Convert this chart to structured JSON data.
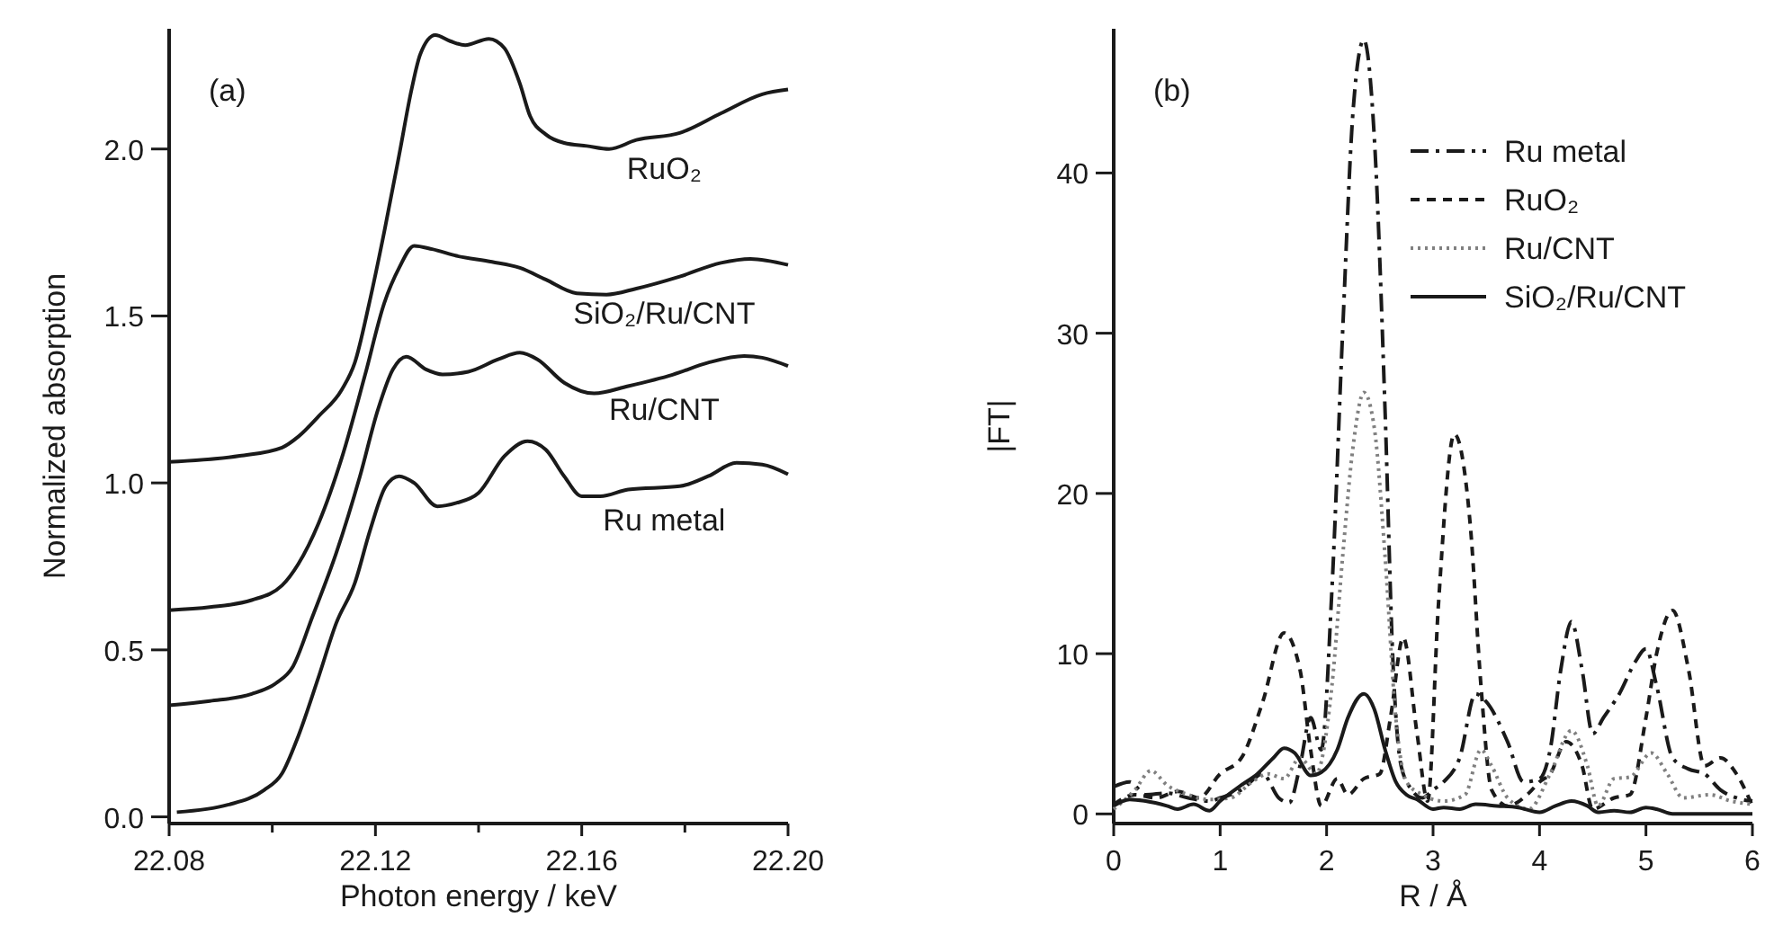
{
  "chart_data": [
    {
      "type": "line",
      "xlabel": "Photon energy / keV",
      "ylabel": "Normalized absorption",
      "annotations": [
        "(a)"
      ],
      "xlim": [
        22.08,
        22.2
      ],
      "ylim": [
        -0.02,
        2.36
      ],
      "xticks": [
        22.08,
        {
          "value": 22.1,
          "label": null
        },
        22.12,
        {
          "value": 22.14,
          "label": null
        },
        22.16,
        {
          "value": 22.18,
          "label": null
        },
        {
          "value": 22.2,
          "label": "22.20"
        }
      ],
      "yticks": [
        {
          "value": 0,
          "label": "0.0"
        },
        {
          "value": 0.5,
          "label": "0.5"
        },
        {
          "value": 1,
          "label": "1.0"
        },
        {
          "value": 1.5,
          "label": "1.5"
        },
        {
          "value": 2,
          "label": "2.0"
        }
      ],
      "grid": false,
      "legend": false,
      "line_style": "solid",
      "series": [
        {
          "name": "RuO₂",
          "color": "#1a1a1a",
          "x": [
            22.08,
            22.0937,
            22.1019,
            22.105,
            22.109,
            22.1135,
            22.116,
            22.1188,
            22.1217,
            22.1246,
            22.127,
            22.1287,
            22.1316,
            22.1345,
            22.1374,
            22.142,
            22.145,
            22.148,
            22.15,
            22.153,
            22.1566,
            22.161,
            22.1653,
            22.1706,
            22.179,
            22.187,
            22.195,
            22.2
          ],
          "values": [
            1.063,
            1.081,
            1.106,
            1.138,
            1.2,
            1.28,
            1.36,
            1.538,
            1.751,
            1.982,
            2.178,
            2.284,
            2.341,
            2.323,
            2.311,
            2.33,
            2.302,
            2.196,
            2.098,
            2.044,
            2.018,
            2.009,
            2.0,
            2.027,
            2.048,
            2.107,
            2.164,
            2.178
          ]
        },
        {
          "name": "SiO₂/Ru/CNT",
          "color": "#1a1a1a",
          "x": [
            22.08,
            22.0879,
            22.096,
            22.1019,
            22.105,
            22.109,
            22.1135,
            22.118,
            22.1217,
            22.1246,
            22.1275,
            22.131,
            22.1357,
            22.1426,
            22.148,
            22.153,
            22.159,
            22.1648,
            22.1706,
            22.179,
            22.187,
            22.1927,
            22.2
          ],
          "values": [
            0.619,
            0.628,
            0.649,
            0.693,
            0.756,
            0.88,
            1.076,
            1.324,
            1.538,
            1.644,
            1.71,
            1.7,
            1.68,
            1.662,
            1.644,
            1.609,
            1.568,
            1.564,
            1.582,
            1.618,
            1.659,
            1.671,
            1.653
          ]
        },
        {
          "name": "Ru/CNT",
          "color": "#1a1a1a",
          "x": [
            22.08,
            22.0879,
            22.096,
            22.1007,
            22.104,
            22.1077,
            22.1124,
            22.117,
            22.1205,
            22.1234,
            22.126,
            22.1298,
            22.133,
            22.138,
            22.1438,
            22.148,
            22.1514,
            22.1566,
            22.1624,
            22.169,
            22.1776,
            22.1845,
            22.1915,
            22.195,
            22.2
          ],
          "values": [
            0.334,
            0.347,
            0.368,
            0.4,
            0.45,
            0.596,
            0.79,
            1.02,
            1.22,
            1.34,
            1.378,
            1.34,
            1.325,
            1.333,
            1.37,
            1.39,
            1.37,
            1.3,
            1.268,
            1.29,
            1.324,
            1.36,
            1.38,
            1.375,
            1.35
          ]
        },
        {
          "name": "Ru metal",
          "color": "#1a1a1a",
          "x": [
            22.0815,
            22.0914,
            22.0984,
            22.1019,
            22.105,
            22.109,
            22.1124,
            22.116,
            22.119,
            22.122,
            22.1246,
            22.1275,
            22.132,
            22.1357,
            22.14,
            22.145,
            22.1495,
            22.153,
            22.1566,
            22.16,
            22.1636,
            22.169,
            22.179,
            22.1845,
            22.19,
            22.195,
            22.2
          ],
          "values": [
            0.014,
            0.036,
            0.08,
            0.13,
            0.24,
            0.42,
            0.58,
            0.7,
            0.86,
            0.99,
            1.02,
            1.0,
            0.93,
            0.94,
            0.97,
            1.08,
            1.125,
            1.1,
            1.02,
            0.96,
            0.96,
            0.98,
            0.99,
            1.02,
            1.06,
            1.055,
            1.026
          ]
        }
      ]
    },
    {
      "type": "line",
      "xlabel": "R / Å",
      "ylabel": "|FT|",
      "annotations": [
        "(b)"
      ],
      "xlim": [
        0,
        6
      ],
      "ylim": [
        -0.6,
        49
      ],
      "xticks": [
        0,
        1,
        2,
        3,
        4,
        5,
        6
      ],
      "yticks": [
        0,
        10,
        20,
        30,
        40
      ],
      "grid": false,
      "legend": "top right",
      "series": [
        {
          "name": "Ru metal",
          "color": "#1a1a1a",
          "line_style": "dashdot",
          "x": [
            0,
            0.15,
            0.3,
            0.5,
            0.7,
            0.9,
            1.0,
            1.2,
            1.4,
            1.55,
            1.65,
            1.75,
            1.85,
            1.95,
            2.05,
            2.15,
            2.25,
            2.35,
            2.45,
            2.55,
            2.62,
            2.7,
            2.8,
            2.9,
            3.0,
            3.1,
            3.25,
            3.4,
            3.5,
            3.7,
            3.85,
            4.0,
            4.1,
            4.2,
            4.3,
            4.4,
            4.5,
            4.6,
            4.75,
            4.9,
            5.0,
            5.1,
            5.25,
            5.4,
            5.55,
            5.7,
            5.85,
            6.0
          ],
          "values": [
            1.7,
            2.0,
            1.2,
            1.3,
            1.0,
            0.8,
            1.0,
            1.5,
            2.5,
            1.0,
            0.7,
            3,
            6,
            4,
            14,
            30,
            44,
            48.3,
            42,
            25,
            10,
            3,
            1.5,
            1.0,
            1.5,
            2.0,
            3.5,
            7.5,
            7.0,
            4.5,
            2,
            2.2,
            4,
            9,
            12,
            9,
            5,
            6,
            7.5,
            9.5,
            10.3,
            8,
            3.5,
            2.8,
            2.5,
            1.5,
            1,
            0.8
          ]
        },
        {
          "name": "RuO₂",
          "color": "#1a1a1a",
          "line_style": "dashed",
          "x": [
            0,
            0.2,
            0.4,
            0.6,
            0.8,
            1.0,
            1.2,
            1.4,
            1.6,
            1.75,
            1.85,
            1.95,
            2.1,
            2.2,
            2.35,
            2.5,
            2.6,
            2.72,
            2.85,
            2.95,
            3.05,
            3.2,
            3.35,
            3.45,
            3.55,
            3.7,
            3.9,
            4.0,
            4.1,
            4.25,
            4.4,
            4.5,
            4.7,
            4.85,
            5.0,
            5.1,
            5.25,
            5.4,
            5.55,
            5.7,
            5.85,
            6.0
          ],
          "values": [
            0.6,
            1.2,
            1.0,
            1.4,
            1.0,
            2.5,
            3.5,
            7,
            11.3,
            9,
            4,
            0.5,
            2.2,
            1.2,
            2.2,
            2.5,
            6,
            11,
            5,
            0.8,
            13,
            23.7,
            18,
            8,
            1.5,
            0.5,
            1.3,
            2.0,
            2.5,
            4.5,
            3,
            0.3,
            1.0,
            1.2,
            6,
            10,
            12.7,
            9,
            3,
            3.5,
            2.5,
            0.5
          ]
        },
        {
          "name": "Ru/CNT",
          "color": "#808080",
          "line_style": "dotted",
          "x": [
            0,
            0.2,
            0.35,
            0.5,
            0.7,
            0.9,
            1.1,
            1.3,
            1.45,
            1.6,
            1.75,
            1.9,
            2.05,
            2.15,
            2.25,
            2.35,
            2.45,
            2.55,
            2.65,
            2.75,
            2.9,
            3.1,
            3.3,
            3.45,
            3.55,
            3.7,
            3.9,
            4.1,
            4.3,
            4.45,
            4.55,
            4.7,
            4.85,
            5.05,
            5.2,
            5.35,
            5.6,
            5.8,
            6.0
          ],
          "values": [
            0.3,
            1.5,
            2.7,
            1.8,
            1.2,
            0.9,
            1.0,
            2.0,
            2.5,
            2.2,
            3.5,
            2.5,
            8,
            16,
            23,
            26.3,
            24,
            16,
            6,
            2,
            1.2,
            0.8,
            1.2,
            4,
            3,
            1.0,
            0.3,
            2.5,
            5.2,
            3,
            0.5,
            2.2,
            2.3,
            3.8,
            2.5,
            1.0,
            1.2,
            0.8,
            0.6
          ]
        },
        {
          "name": "SiO₂/Ru/CNT",
          "color": "#1a1a1a",
          "line_style": "solid",
          "x": [
            0,
            0.15,
            0.3,
            0.5,
            0.6,
            0.75,
            0.9,
            1.0,
            1.2,
            1.35,
            1.5,
            1.6,
            1.7,
            1.85,
            1.95,
            2.1,
            2.2,
            2.35,
            2.45,
            2.55,
            2.65,
            2.75,
            2.85,
            3.0,
            3.1,
            3.25,
            3.4,
            3.6,
            3.8,
            4.0,
            4.15,
            4.3,
            4.45,
            4.55,
            4.7,
            4.85,
            5.0,
            5.1,
            5.25,
            5.5,
            6.0
          ],
          "values": [
            0.5,
            0.9,
            0.8,
            0.5,
            0.3,
            0.6,
            0.2,
            0.8,
            1.8,
            2.5,
            3.5,
            4.1,
            3.8,
            2.4,
            2.6,
            4,
            6,
            7.5,
            6.5,
            4,
            2,
            1.2,
            0.9,
            0.3,
            0.4,
            0.3,
            0.6,
            0.5,
            0.4,
            0.1,
            0.5,
            0.8,
            0.5,
            0.1,
            0.2,
            0.1,
            0.4,
            0.3,
            0.0,
            0.0,
            0.0
          ]
        }
      ]
    }
  ]
}
